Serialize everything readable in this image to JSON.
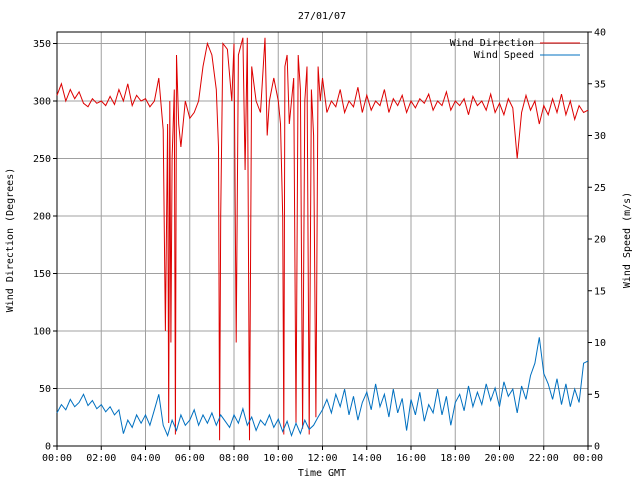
{
  "chart_data": {
    "type": "line",
    "title": "27/01/07",
    "xlabel": "Time GMT",
    "ylabel_left": "Wind Direction (Degrees)",
    "ylabel_right": "Wind Speed (m/s)",
    "x_range_hours": [
      0,
      24
    ],
    "x_ticks": [
      "00:00",
      "02:00",
      "04:00",
      "06:00",
      "08:00",
      "10:00",
      "12:00",
      "14:00",
      "16:00",
      "18:00",
      "20:00",
      "22:00",
      "00:00"
    ],
    "ylim_left": [
      0,
      360
    ],
    "y_ticks_left": [
      "0",
      "50",
      "100",
      "150",
      "200",
      "250",
      "300",
      "350"
    ],
    "ylim_right": [
      0,
      40
    ],
    "y_ticks_right": [
      "0",
      "5",
      "10",
      "15",
      "20",
      "25",
      "30",
      "35",
      "40"
    ],
    "grid": true,
    "legend_position": "top-right",
    "series": [
      {
        "name": "Wind Direction",
        "axis": "left",
        "color": "#dd0000",
        "points": [
          [
            0.0,
            305
          ],
          [
            0.2,
            315
          ],
          [
            0.4,
            300
          ],
          [
            0.6,
            310
          ],
          [
            0.8,
            302
          ],
          [
            1.0,
            308
          ],
          [
            1.2,
            298
          ],
          [
            1.4,
            295
          ],
          [
            1.6,
            302
          ],
          [
            1.8,
            298
          ],
          [
            2.0,
            300
          ],
          [
            2.2,
            296
          ],
          [
            2.4,
            304
          ],
          [
            2.6,
            297
          ],
          [
            2.8,
            310
          ],
          [
            3.0,
            300
          ],
          [
            3.2,
            315
          ],
          [
            3.4,
            296
          ],
          [
            3.6,
            305
          ],
          [
            3.8,
            300
          ],
          [
            4.0,
            302
          ],
          [
            4.2,
            295
          ],
          [
            4.4,
            300
          ],
          [
            4.6,
            320
          ],
          [
            4.8,
            275
          ],
          [
            4.9,
            100
          ],
          [
            5.0,
            280
          ],
          [
            5.05,
            20
          ],
          [
            5.1,
            300
          ],
          [
            5.15,
            90
          ],
          [
            5.2,
            250
          ],
          [
            5.3,
            310
          ],
          [
            5.35,
            10
          ],
          [
            5.4,
            340
          ],
          [
            5.5,
            280
          ],
          [
            5.6,
            260
          ],
          [
            5.8,
            300
          ],
          [
            6.0,
            285
          ],
          [
            6.2,
            290
          ],
          [
            6.4,
            300
          ],
          [
            6.6,
            330
          ],
          [
            6.8,
            350
          ],
          [
            7.0,
            340
          ],
          [
            7.2,
            310
          ],
          [
            7.3,
            260
          ],
          [
            7.35,
            5
          ],
          [
            7.4,
            200
          ],
          [
            7.5,
            350
          ],
          [
            7.7,
            345
          ],
          [
            7.9,
            300
          ],
          [
            8.0,
            350
          ],
          [
            8.1,
            90
          ],
          [
            8.2,
            340
          ],
          [
            8.4,
            355
          ],
          [
            8.5,
            240
          ],
          [
            8.6,
            355
          ],
          [
            8.7,
            5
          ],
          [
            8.8,
            330
          ],
          [
            9.0,
            300
          ],
          [
            9.2,
            290
          ],
          [
            9.4,
            355
          ],
          [
            9.5,
            270
          ],
          [
            9.6,
            300
          ],
          [
            9.8,
            320
          ],
          [
            10.0,
            300
          ],
          [
            10.1,
            280
          ],
          [
            10.2,
            200
          ],
          [
            10.25,
            10
          ],
          [
            10.3,
            330
          ],
          [
            10.4,
            340
          ],
          [
            10.5,
            280
          ],
          [
            10.6,
            300
          ],
          [
            10.7,
            320
          ],
          [
            10.8,
            20
          ],
          [
            10.9,
            340
          ],
          [
            11.0,
            310
          ],
          [
            11.1,
            15
          ],
          [
            11.2,
            300
          ],
          [
            11.3,
            330
          ],
          [
            11.4,
            10
          ],
          [
            11.5,
            310
          ],
          [
            11.6,
            270
          ],
          [
            11.7,
            25
          ],
          [
            11.8,
            330
          ],
          [
            11.9,
            300
          ],
          [
            12.0,
            320
          ],
          [
            12.2,
            290
          ],
          [
            12.4,
            300
          ],
          [
            12.6,
            295
          ],
          [
            12.8,
            310
          ],
          [
            13.0,
            290
          ],
          [
            13.2,
            300
          ],
          [
            13.4,
            295
          ],
          [
            13.6,
            312
          ],
          [
            13.8,
            290
          ],
          [
            14.0,
            305
          ],
          [
            14.2,
            292
          ],
          [
            14.4,
            300
          ],
          [
            14.6,
            296
          ],
          [
            14.8,
            310
          ],
          [
            15.0,
            290
          ],
          [
            15.2,
            302
          ],
          [
            15.4,
            296
          ],
          [
            15.6,
            305
          ],
          [
            15.8,
            290
          ],
          [
            16.0,
            300
          ],
          [
            16.2,
            294
          ],
          [
            16.4,
            302
          ],
          [
            16.6,
            298
          ],
          [
            16.8,
            306
          ],
          [
            17.0,
            292
          ],
          [
            17.2,
            300
          ],
          [
            17.4,
            296
          ],
          [
            17.6,
            308
          ],
          [
            17.8,
            292
          ],
          [
            18.0,
            300
          ],
          [
            18.2,
            296
          ],
          [
            18.4,
            302
          ],
          [
            18.6,
            288
          ],
          [
            18.8,
            304
          ],
          [
            19.0,
            296
          ],
          [
            19.2,
            300
          ],
          [
            19.4,
            292
          ],
          [
            19.6,
            306
          ],
          [
            19.8,
            290
          ],
          [
            20.0,
            298
          ],
          [
            20.2,
            288
          ],
          [
            20.4,
            302
          ],
          [
            20.6,
            294
          ],
          [
            20.8,
            250
          ],
          [
            21.0,
            290
          ],
          [
            21.2,
            305
          ],
          [
            21.4,
            292
          ],
          [
            21.6,
            300
          ],
          [
            21.8,
            280
          ],
          [
            22.0,
            296
          ],
          [
            22.2,
            288
          ],
          [
            22.4,
            302
          ],
          [
            22.6,
            290
          ],
          [
            22.8,
            306
          ],
          [
            23.0,
            288
          ],
          [
            23.2,
            300
          ],
          [
            23.4,
            284
          ],
          [
            23.6,
            296
          ],
          [
            23.8,
            290
          ],
          [
            24.0,
            292
          ]
        ]
      },
      {
        "name": "Wind Speed",
        "axis": "right",
        "color": "#0070c0",
        "points": [
          [
            0.0,
            3.2
          ],
          [
            0.2,
            4.0
          ],
          [
            0.4,
            3.5
          ],
          [
            0.6,
            4.5
          ],
          [
            0.8,
            3.8
          ],
          [
            1.0,
            4.2
          ],
          [
            1.2,
            5.0
          ],
          [
            1.4,
            3.9
          ],
          [
            1.6,
            4.4
          ],
          [
            1.8,
            3.6
          ],
          [
            2.0,
            4.0
          ],
          [
            2.2,
            3.3
          ],
          [
            2.4,
            3.8
          ],
          [
            2.6,
            3.0
          ],
          [
            2.8,
            3.5
          ],
          [
            3.0,
            1.2
          ],
          [
            3.2,
            2.5
          ],
          [
            3.4,
            1.8
          ],
          [
            3.6,
            3.0
          ],
          [
            3.8,
            2.2
          ],
          [
            4.0,
            3.0
          ],
          [
            4.2,
            2.0
          ],
          [
            4.4,
            3.5
          ],
          [
            4.6,
            5.0
          ],
          [
            4.8,
            2.0
          ],
          [
            5.0,
            1.0
          ],
          [
            5.2,
            2.5
          ],
          [
            5.4,
            1.5
          ],
          [
            5.6,
            3.0
          ],
          [
            5.8,
            2.0
          ],
          [
            6.0,
            2.5
          ],
          [
            6.2,
            3.5
          ],
          [
            6.4,
            2.0
          ],
          [
            6.6,
            3.0
          ],
          [
            6.8,
            2.2
          ],
          [
            7.0,
            3.2
          ],
          [
            7.2,
            2.0
          ],
          [
            7.4,
            3.0
          ],
          [
            7.6,
            2.4
          ],
          [
            7.8,
            1.8
          ],
          [
            8.0,
            3.0
          ],
          [
            8.2,
            2.2
          ],
          [
            8.4,
            3.6
          ],
          [
            8.6,
            2.0
          ],
          [
            8.8,
            2.8
          ],
          [
            9.0,
            1.5
          ],
          [
            9.2,
            2.5
          ],
          [
            9.4,
            2.0
          ],
          [
            9.6,
            3.0
          ],
          [
            9.8,
            1.8
          ],
          [
            10.0,
            2.6
          ],
          [
            10.2,
            1.4
          ],
          [
            10.4,
            2.4
          ],
          [
            10.6,
            1.0
          ],
          [
            10.8,
            2.2
          ],
          [
            11.0,
            1.2
          ],
          [
            11.2,
            2.5
          ],
          [
            11.4,
            1.6
          ],
          [
            11.6,
            2.0
          ],
          [
            11.8,
            2.8
          ],
          [
            12.0,
            3.5
          ],
          [
            12.2,
            4.5
          ],
          [
            12.4,
            3.2
          ],
          [
            12.6,
            5.0
          ],
          [
            12.8,
            3.8
          ],
          [
            13.0,
            5.5
          ],
          [
            13.2,
            3.0
          ],
          [
            13.4,
            4.8
          ],
          [
            13.6,
            2.5
          ],
          [
            13.8,
            4.2
          ],
          [
            14.0,
            5.2
          ],
          [
            14.2,
            3.5
          ],
          [
            14.4,
            6.0
          ],
          [
            14.6,
            3.8
          ],
          [
            14.8,
            5.0
          ],
          [
            15.0,
            2.8
          ],
          [
            15.2,
            5.5
          ],
          [
            15.4,
            3.2
          ],
          [
            15.6,
            4.6
          ],
          [
            15.8,
            1.5
          ],
          [
            16.0,
            4.5
          ],
          [
            16.2,
            3.0
          ],
          [
            16.4,
            5.2
          ],
          [
            16.6,
            2.4
          ],
          [
            16.8,
            4.0
          ],
          [
            17.0,
            3.2
          ],
          [
            17.2,
            5.5
          ],
          [
            17.4,
            3.0
          ],
          [
            17.6,
            4.8
          ],
          [
            17.8,
            2.0
          ],
          [
            18.0,
            4.2
          ],
          [
            18.2,
            5.0
          ],
          [
            18.4,
            3.4
          ],
          [
            18.6,
            5.8
          ],
          [
            18.8,
            3.8
          ],
          [
            19.0,
            5.2
          ],
          [
            19.2,
            4.0
          ],
          [
            19.4,
            6.0
          ],
          [
            19.6,
            4.4
          ],
          [
            19.8,
            5.6
          ],
          [
            20.0,
            3.8
          ],
          [
            20.2,
            6.2
          ],
          [
            20.4,
            4.8
          ],
          [
            20.6,
            5.5
          ],
          [
            20.8,
            3.2
          ],
          [
            21.0,
            5.8
          ],
          [
            21.2,
            4.5
          ],
          [
            21.4,
            6.8
          ],
          [
            21.6,
            8.0
          ],
          [
            21.8,
            10.5
          ],
          [
            22.0,
            7.0
          ],
          [
            22.2,
            6.0
          ],
          [
            22.4,
            4.5
          ],
          [
            22.6,
            6.5
          ],
          [
            22.8,
            4.0
          ],
          [
            23.0,
            6.0
          ],
          [
            23.2,
            3.8
          ],
          [
            23.4,
            5.5
          ],
          [
            23.6,
            4.2
          ],
          [
            23.8,
            8.0
          ],
          [
            24.0,
            8.2
          ]
        ]
      }
    ]
  }
}
